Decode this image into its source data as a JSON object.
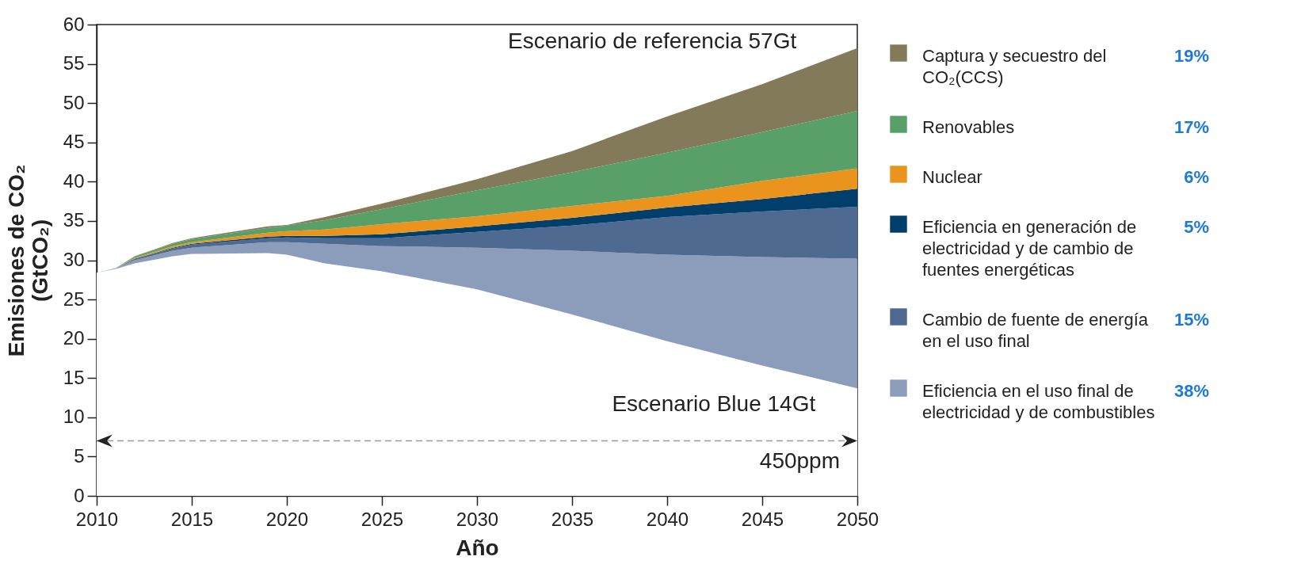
{
  "chart_data": {
    "type": "area",
    "stacked": true,
    "xlabel": "Año",
    "ylabel": "Emisiones de CO₂ (GtCO₂)",
    "x": [
      2010,
      2011,
      2012,
      2014,
      2015,
      2019,
      2020,
      2022,
      2025,
      2030,
      2035,
      2040,
      2045,
      2050
    ],
    "series": [
      {
        "color": "#ffffff",
        "values": [
          28.4,
          28.9,
          29.6,
          30.5,
          30.8,
          30.9,
          30.7,
          29.6,
          28.6,
          26.3,
          23.1,
          19.7,
          16.6,
          13.7
        ]
      },
      {
        "name": "Eficiencia en el uso final de electricidad y de combustibles",
        "color": "#8c9cbb",
        "values": [
          0,
          0.1,
          0.4,
          0.7,
          0.8,
          1.4,
          1.6,
          2.5,
          3.2,
          5.3,
          8.1,
          11.0,
          13.8,
          16.5
        ]
      },
      {
        "name": "Cambio de fuente de energía en el uso final",
        "color": "#4e6a91",
        "values": [
          0,
          0,
          0.2,
          0.3,
          0.4,
          0.5,
          0.6,
          0.7,
          1.0,
          2.0,
          3.2,
          4.8,
          5.8,
          6.6
        ]
      },
      {
        "name": "Eficiencia en generación de electricidad y de cambio de fuentes energéticas",
        "color": "#003e6b",
        "values": [
          0,
          0,
          0,
          0.1,
          0.1,
          0.2,
          0.2,
          0.3,
          0.5,
          0.7,
          1.0,
          1.2,
          1.6,
          2.3
        ]
      },
      {
        "name": "Nuclear",
        "color": "#eb941d",
        "values": [
          0,
          0,
          0.1,
          0.2,
          0.2,
          0.5,
          0.6,
          0.8,
          1.3,
          1.3,
          1.5,
          1.5,
          2.3,
          2.6
        ]
      },
      {
        "name": "Renovables",
        "color": "#58a068",
        "values": [
          0,
          0,
          0.2,
          0.3,
          0.4,
          0.6,
          0.7,
          1.2,
          1.9,
          3.3,
          4.3,
          5.5,
          6.2,
          7.3
        ]
      },
      {
        "name": "Captura y secuestro del CO₂(CCS)",
        "color": "#837a5a",
        "values": [
          0,
          0,
          0,
          0.1,
          0.1,
          0.2,
          0.1,
          0.4,
          0.7,
          1.4,
          2.7,
          4.6,
          6.1,
          8.0
        ]
      }
    ],
    "xlim": [
      2010,
      2050
    ],
    "xticks": [
      2010,
      2015,
      2020,
      2025,
      2030,
      2035,
      2040,
      2045,
      2050
    ],
    "ylim": [
      0,
      60
    ],
    "yticks": [
      0,
      5,
      10,
      15,
      20,
      25,
      30,
      35,
      40,
      45,
      50,
      55,
      60
    ],
    "ref_lines": [
      {
        "axis": "y",
        "value": 7,
        "label": "450ppm",
        "color": "#999999",
        "line_style": "dashed"
      }
    ],
    "annotations": [
      "Escenario de referencia 57Gt",
      "Escenario Blue 14Gt",
      "38%",
      "15%",
      "5%",
      "6%",
      "17%",
      "19%"
    ],
    "legend": "right"
  }
}
